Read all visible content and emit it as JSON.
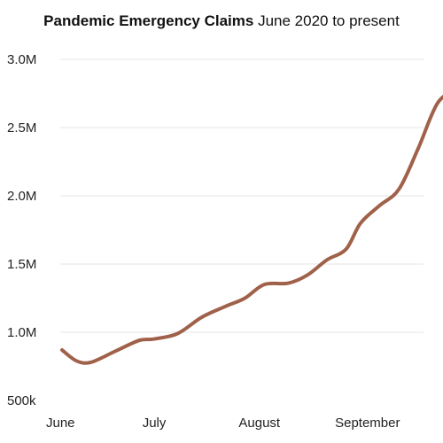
{
  "chart_data": {
    "type": "line",
    "title": "Pandemic Emergency Claims",
    "subtitle": "June 2020 to present",
    "xlabel": "",
    "ylabel": "",
    "x_tick_labels": [
      "June",
      "July",
      "August",
      "September"
    ],
    "y_tick_labels": [
      "500k",
      "1.0M",
      "1.5M",
      "2.0M",
      "2.5M",
      "3.0M"
    ],
    "y_ticks": [
      500000,
      1000000,
      1500000,
      2000000,
      2500000,
      3000000
    ],
    "ylim": [
      500000,
      3000000
    ],
    "x_range_months": [
      0,
      4.25
    ],
    "x_tick_positions": [
      0,
      1,
      2,
      3
    ],
    "grid": "horizontal",
    "legend": "none",
    "line_color": "#a0614a",
    "series": [
      {
        "x": [
          0,
          0.15,
          0.3,
          0.55,
          0.8,
          0.95,
          1.2,
          1.45,
          1.7,
          1.9,
          2.1,
          2.35,
          2.55,
          2.75,
          2.95,
          3.1,
          3.3,
          3.5,
          3.7,
          3.9,
          4.1
        ],
        "values": [
          870000,
          790000,
          780000,
          860000,
          940000,
          950000,
          990000,
          1110000,
          1190000,
          1250000,
          1350000,
          1360000,
          1420000,
          1530000,
          1610000,
          1800000,
          1930000,
          2050000,
          2350000,
          2680000,
          2780000
        ]
      }
    ]
  }
}
